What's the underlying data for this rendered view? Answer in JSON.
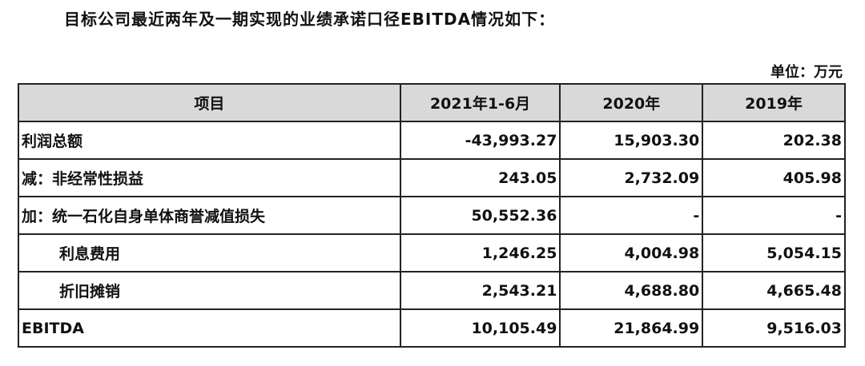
{
  "title": "目标公司最近两年及一期实现的业绩承诺口径EBITDA情况如下：",
  "unit": "单位：万元",
  "table": {
    "header": [
      "项目",
      "2021年1-6月",
      "2020年",
      "2019年"
    ],
    "rows": [
      [
        "利润总额",
        "-43,993.27",
        "15,903.30",
        "202.38"
      ],
      [
        "减：非经常性损益",
        "243.05",
        "2,732.09",
        "405.98"
      ],
      [
        "加：统一石化自身单体商誉减值损失",
        "50,552.36",
        "-",
        "-"
      ],
      [
        "利息费用",
        "1,246.25",
        "4,004.98",
        "5,054.15"
      ],
      [
        "折旧摊销",
        "2,543.21",
        "4,688.80",
        "4,665.48"
      ],
      [
        "EBITDA",
        "10,105.49",
        "21,864.99",
        "9,516.03"
      ]
    ]
  }
}
